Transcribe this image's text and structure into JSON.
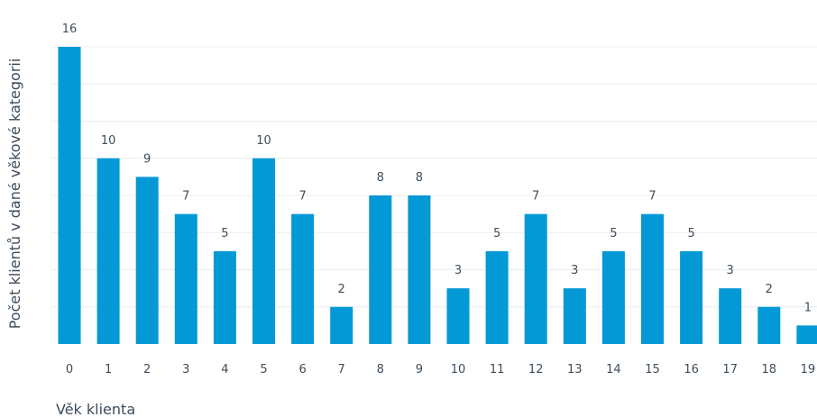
{
  "chart_data": {
    "type": "bar",
    "title": "",
    "xlabel": "Věk klienta",
    "ylabel": "Počet klientů v dané věkové kategorii",
    "categories": [
      "0",
      "1",
      "2",
      "3",
      "4",
      "5",
      "6",
      "7",
      "8",
      "9",
      "10",
      "11",
      "12",
      "13",
      "14",
      "15",
      "16",
      "17",
      "18",
      "19"
    ],
    "values": [
      16,
      10,
      9,
      7,
      5,
      10,
      7,
      2,
      8,
      8,
      3,
      5,
      7,
      3,
      5,
      7,
      5,
      3,
      2,
      1
    ],
    "ylim": [
      0,
      16
    ],
    "grid": true,
    "legend": "none",
    "colors": {
      "bar": "#0399d6",
      "grid": "#e8ecef",
      "text": "#3d4d5c"
    }
  }
}
